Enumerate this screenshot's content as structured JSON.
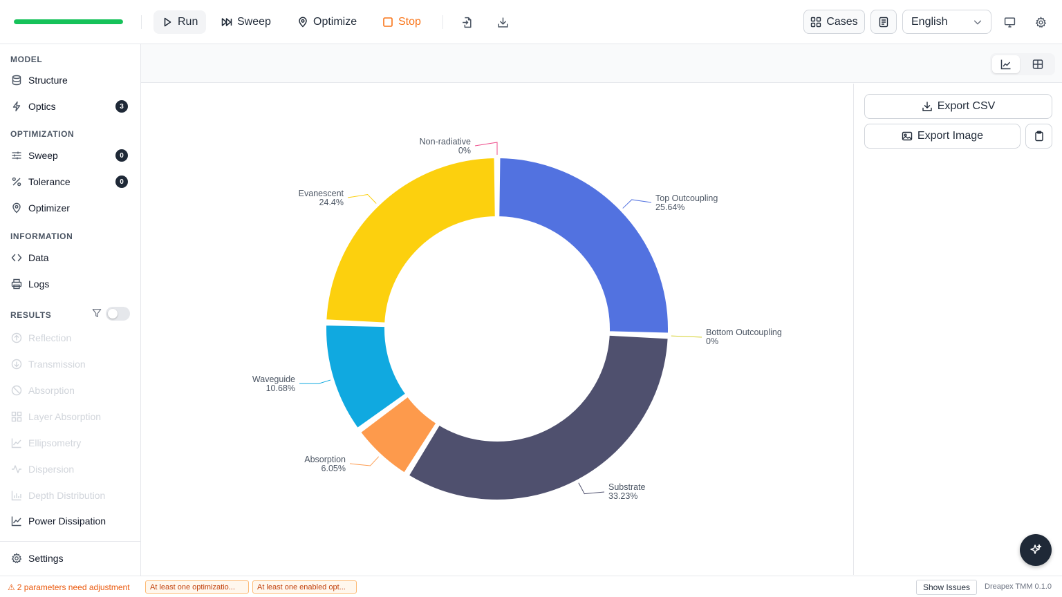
{
  "toolbar": {
    "progress": 1.0,
    "run_label": "Run",
    "sweep_label": "Sweep",
    "optimize_label": "Optimize",
    "stop_label": "Stop",
    "cases_label": "Cases",
    "language": "English"
  },
  "sidebar": {
    "model_label": "MODEL",
    "structure": "Structure",
    "optics": "Optics",
    "optics_badge": "3",
    "optimization_label": "OPTIMIZATION",
    "sweep": "Sweep",
    "sweep_badge": "0",
    "tolerance": "Tolerance",
    "tolerance_badge": "0",
    "optimizer": "Optimizer",
    "information_label": "INFORMATION",
    "data": "Data",
    "logs": "Logs",
    "results_label": "RESULTS",
    "results": [
      "Reflection",
      "Transmission",
      "Absorption",
      "Layer Absorption",
      "Ellipsometry",
      "Dispersion",
      "Depth Distribution"
    ],
    "power_dissipation": "Power Dissipation",
    "settings": "Settings"
  },
  "panel": {
    "export_csv": "Export CSV",
    "export_image": "Export Image"
  },
  "status": {
    "warning": "2 parameters need adjustment",
    "chip1": "At least one optimizatio...",
    "chip2": "At least one enabled opt...",
    "show_issues": "Show Issues",
    "version": "Dreapex TMM 0.1.0"
  },
  "colors": {
    "top_outcoupling": "#5272e0",
    "bottom_outcoupling": "#d4d02a",
    "substrate": "#4f506e",
    "absorption": "#fd9a4c",
    "waveguide": "#10a9e0",
    "evanescent": "#fcd00e",
    "non_radiative": "#ee4b8a"
  },
  "chart_data": {
    "type": "pie",
    "donut": true,
    "series": [
      {
        "name": "Top Outcoupling",
        "value": 25.64,
        "label": "25.64%"
      },
      {
        "name": "Bottom Outcoupling",
        "value": 0,
        "label": "0%"
      },
      {
        "name": "Substrate",
        "value": 33.23,
        "label": "33.23%"
      },
      {
        "name": "Absorption",
        "value": 6.05,
        "label": "6.05%"
      },
      {
        "name": "Waveguide",
        "value": 10.68,
        "label": "10.68%"
      },
      {
        "name": "Evanescent",
        "value": 24.4,
        "label": "24.4%"
      },
      {
        "name": "Non-radiative",
        "value": 0,
        "label": "0%"
      }
    ]
  }
}
